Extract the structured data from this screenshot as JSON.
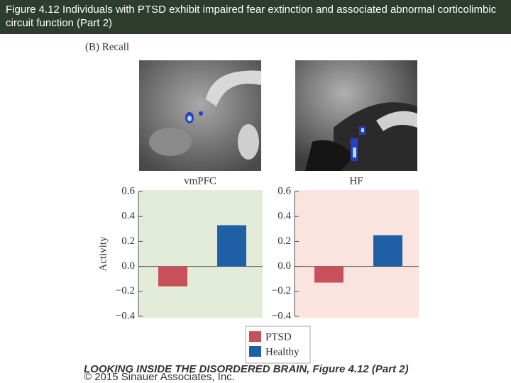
{
  "header": {
    "title": "Figure 4.12  Individuals with PTSD exhibit impaired fear extinction and associated abnormal corticolimbic circuit function (Part 2)"
  },
  "panel_label": "(B)  Recall",
  "chart_data": [
    {
      "type": "bar",
      "title": "vmPFC",
      "y_label": "Activity",
      "background": "#e3ebd9",
      "ylim": [
        -0.4,
        0.6
      ],
      "yticks": [
        {
          "value": -0.4,
          "label": "−0.4"
        },
        {
          "value": -0.2,
          "label": "−0.2"
        },
        {
          "value": 0,
          "label": "0.0"
        },
        0.2,
        0.4,
        0.6
      ],
      "series": [
        {
          "name": "PTSD",
          "color": "#c8505a",
          "values": [
            -0.16
          ]
        },
        {
          "name": "Healthy",
          "color": "#1f5fa6",
          "values": [
            0.33
          ]
        }
      ]
    },
    {
      "type": "bar",
      "title": "HF",
      "background": "#fbe4df",
      "ylim": [
        -0.4,
        0.6
      ],
      "yticks": [
        {
          "value": -0.4,
          "label": "−0.4"
        },
        {
          "value": -0.2,
          "label": "−0.2"
        },
        {
          "value": 0,
          "label": "0.0"
        },
        0.2,
        0.4,
        0.6
      ],
      "series": [
        {
          "color": "#c8505a",
          "values": [
            -0.13
          ]
        },
        {
          "color": "#1f5fa6",
          "values": [
            0.25
          ]
        }
      ]
    }
  ],
  "credit": [
    "LOOKING INSIDE THE DISORDERED BRAIN, Figure 4.12 (Part 2)",
    "© 2015 Sinauer Associates, Inc."
  ]
}
